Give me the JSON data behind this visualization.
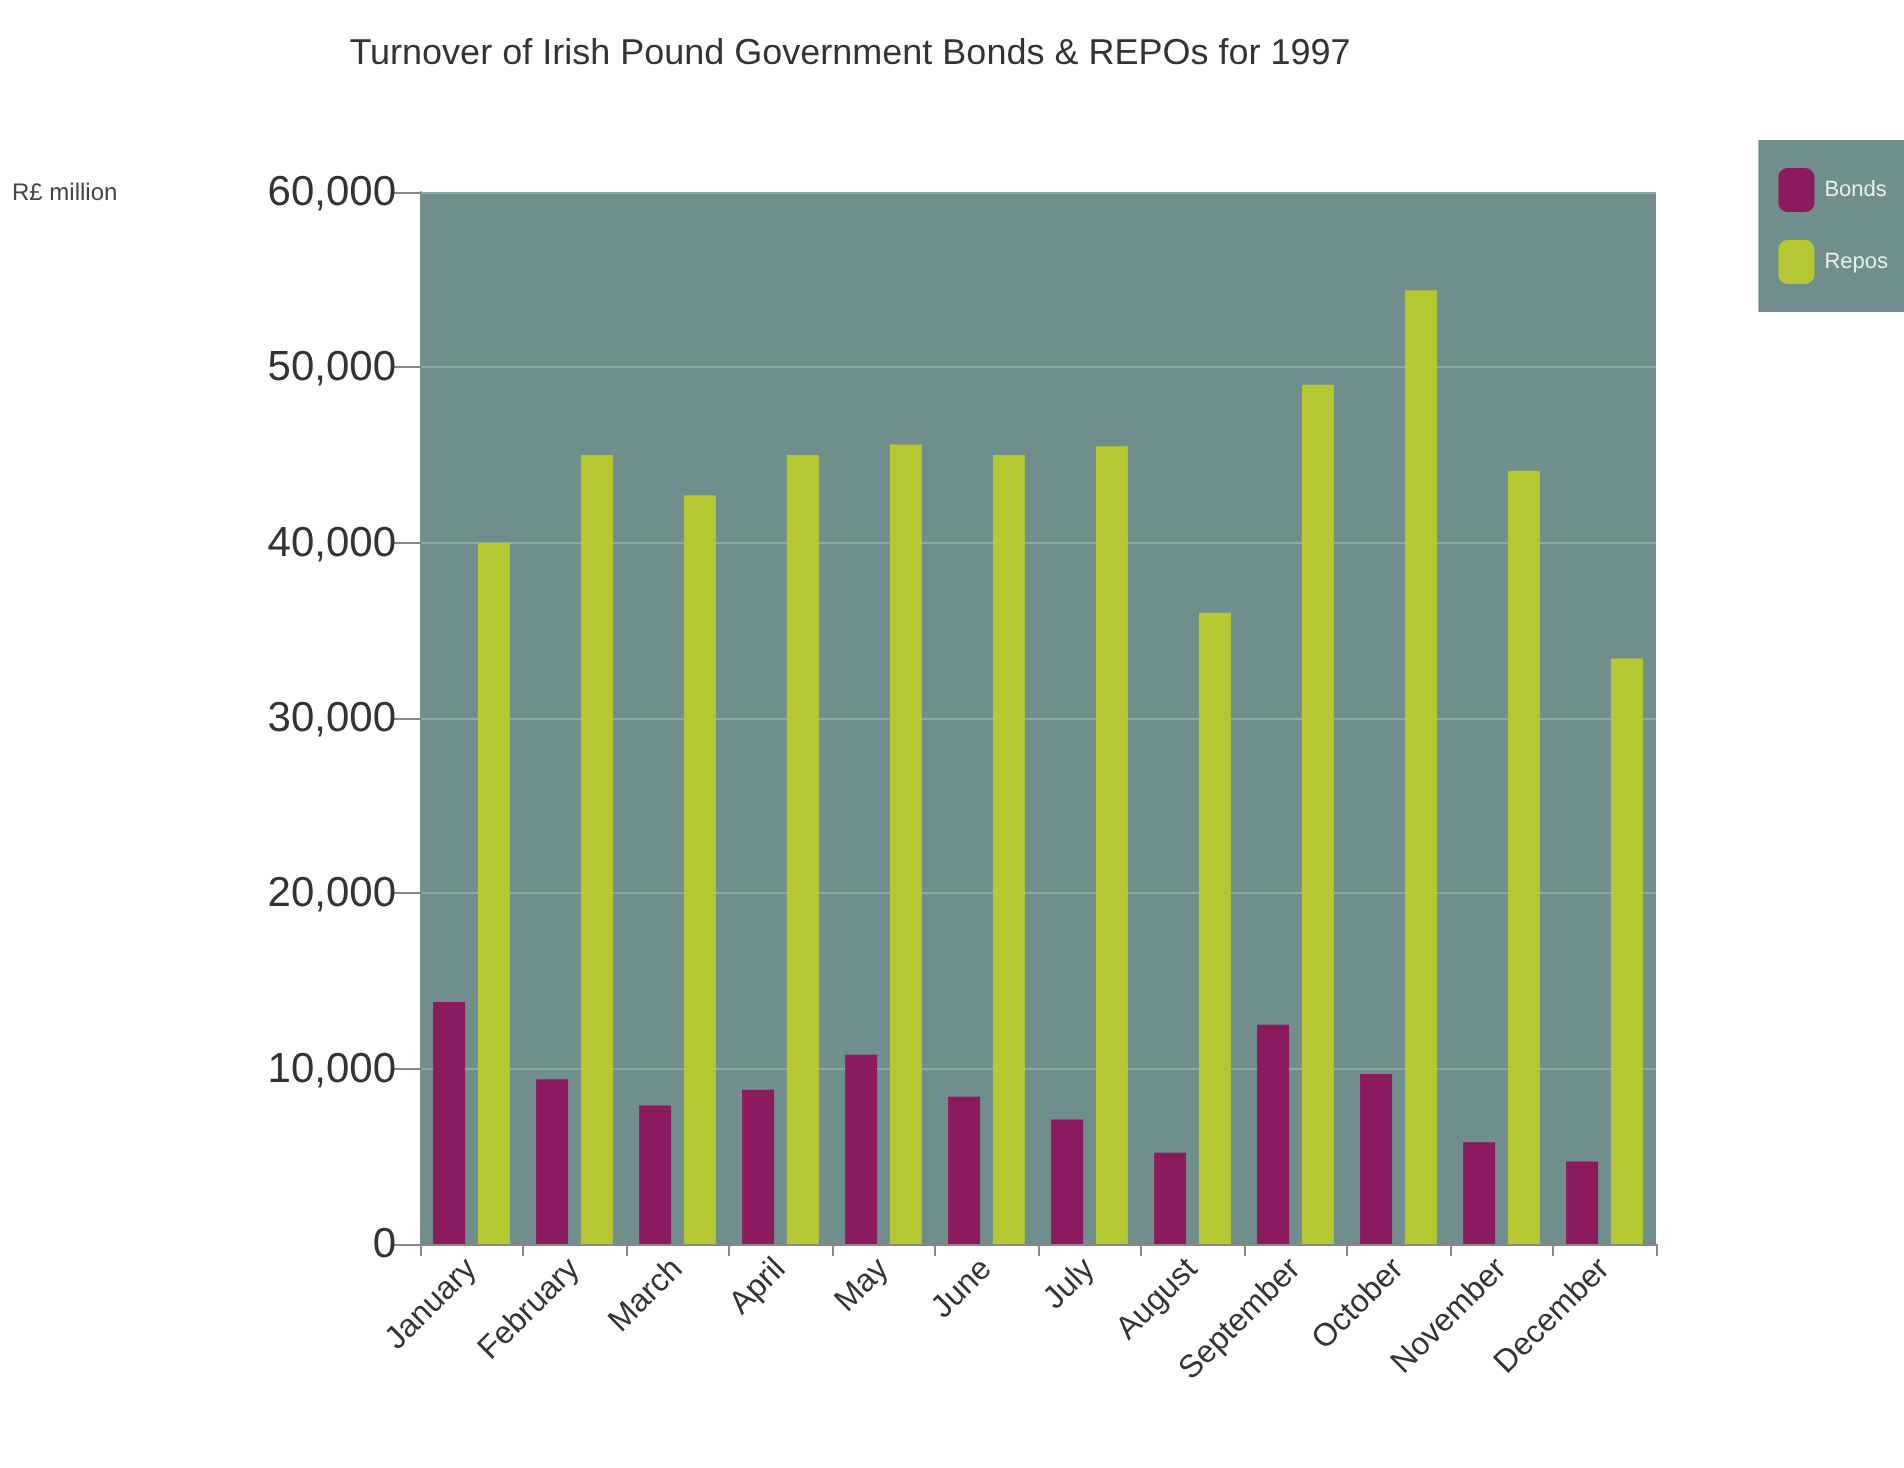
{
  "chart_data": {
    "type": "bar",
    "title": "Turnover of Irish Pound Government Bonds & REPOs for 1997",
    "annotations": [
      "R£ million"
    ],
    "categories": [
      "January",
      "February",
      "March",
      "April",
      "May",
      "June",
      "July",
      "August",
      "September",
      "October",
      "November",
      "December"
    ],
    "series": [
      {
        "name": "Bonds",
        "color": "#8b1a5e",
        "values": [
          13800,
          9400,
          7900,
          8800,
          10800,
          8400,
          7100,
          5200,
          12500,
          9700,
          5800,
          4700
        ]
      },
      {
        "name": "Repos",
        "color": "#b5c832",
        "values": [
          40000,
          45000,
          42700,
          45000,
          45600,
          45000,
          45500,
          36000,
          49000,
          54400,
          44100,
          33400
        ]
      }
    ],
    "ylim": [
      0,
      60000
    ],
    "yticks": [
      0,
      {
        "value": 10000,
        "label": "10,000"
      },
      {
        "value": 20000,
        "label": "20,000"
      },
      {
        "value": 30000,
        "label": "30,000"
      },
      {
        "value": 40000,
        "label": "40,000"
      },
      {
        "value": 50000,
        "label": "50,000"
      },
      {
        "value": 60000,
        "label": "60,000"
      }
    ],
    "grid": "y",
    "legend": "top right"
  }
}
